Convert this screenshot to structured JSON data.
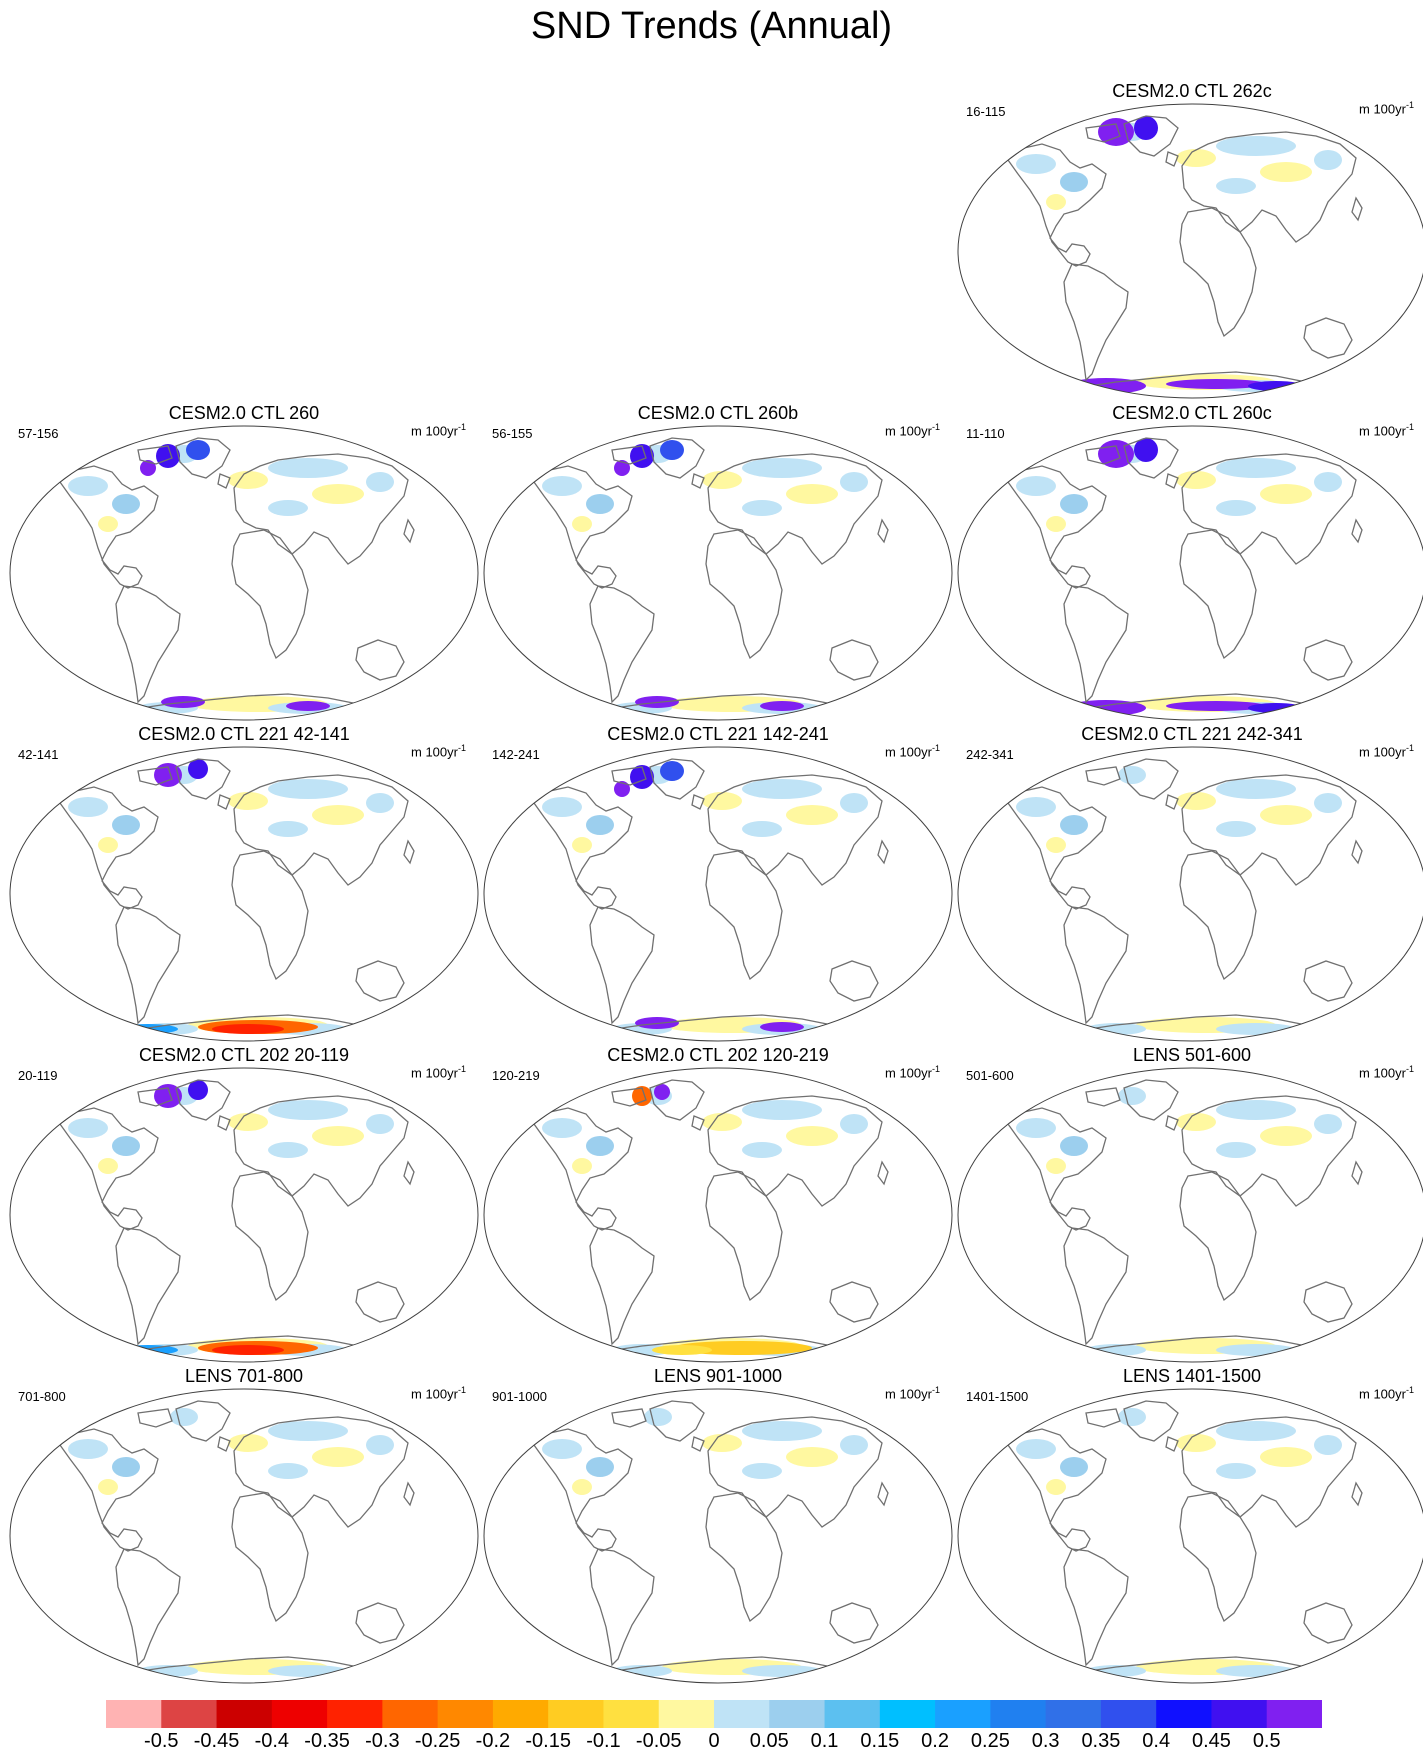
{
  "title": "SND Trends (Annual)",
  "units_base": "m 100yr",
  "units_exp": "-1",
  "panels": [
    {
      "title": "CESM2.0 CTL 262c",
      "years": "16-115",
      "row": 0,
      "col": 2,
      "pattern": "purple"
    },
    {
      "title": "CESM2.0 CTL 260",
      "years": "57-156",
      "row": 1,
      "col": 0,
      "pattern": "mixed"
    },
    {
      "title": "CESM2.0 CTL 260b",
      "years": "56-155",
      "row": 1,
      "col": 1,
      "pattern": "mixed"
    },
    {
      "title": "CESM2.0 CTL 260c",
      "years": "11-110",
      "row": 1,
      "col": 2,
      "pattern": "purple"
    },
    {
      "title": "CESM2.0 CTL 221 42-141",
      "years": "42-141",
      "row": 2,
      "col": 0,
      "pattern": "red"
    },
    {
      "title": "CESM2.0 CTL 221 142-241",
      "years": "142-241",
      "row": 2,
      "col": 1,
      "pattern": "mixed"
    },
    {
      "title": "CESM2.0 CTL 221 242-341",
      "years": "242-341",
      "row": 2,
      "col": 2,
      "pattern": "mild"
    },
    {
      "title": "CESM2.0 CTL 202 20-119",
      "years": "20-119",
      "row": 3,
      "col": 0,
      "pattern": "red"
    },
    {
      "title": "CESM2.0 CTL 202 120-219",
      "years": "120-219",
      "row": 3,
      "col": 1,
      "pattern": "orange"
    },
    {
      "title": "LENS 501-600",
      "years": "501-600",
      "row": 3,
      "col": 2,
      "pattern": "mild"
    },
    {
      "title": "LENS 701-800",
      "years": "701-800",
      "row": 4,
      "col": 0,
      "pattern": "mild"
    },
    {
      "title": "LENS 901-1000",
      "years": "901-1000",
      "row": 4,
      "col": 1,
      "pattern": "mild"
    },
    {
      "title": "LENS 1401-1500",
      "years": "1401-1500",
      "row": 4,
      "col": 2,
      "pattern": "mild"
    }
  ],
  "colorbar": {
    "colors": [
      "#ffb3b3",
      "#dd4444",
      "#cc0000",
      "#ee0000",
      "#ff2200",
      "#ff6600",
      "#ff8800",
      "#ffaa00",
      "#ffcc22",
      "#ffe040",
      "#fff8a0",
      "#bfe3f6",
      "#9ccfee",
      "#5cc0f0",
      "#00bfff",
      "#1aa0ff",
      "#2080f0",
      "#3070e8",
      "#3050ee",
      "#1010ff",
      "#4010f0",
      "#8020f0"
    ],
    "labels": [
      "-0.5",
      "-0.45",
      "-0.4",
      "-0.35",
      "-0.3",
      "-0.25",
      "-0.2",
      "-0.15",
      "-0.1",
      "-0.05",
      "0",
      "0.05",
      "0.1",
      "0.15",
      "0.2",
      "0.25",
      "0.3",
      "0.35",
      "0.4",
      "0.45",
      "0.5"
    ]
  }
}
